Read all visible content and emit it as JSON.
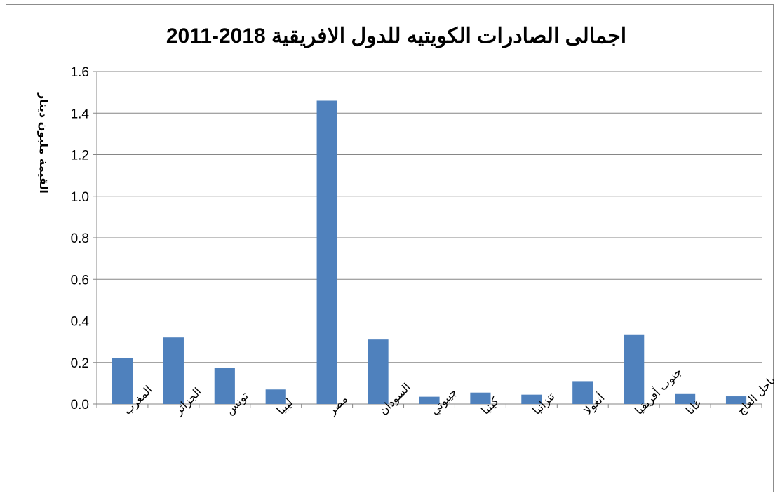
{
  "chart_data": {
    "type": "bar",
    "title": "اجمالى الصادرات الكويتيه للدول الافريقية 2018-2011",
    "xlabel": "",
    "ylabel": "القيمة مليون دينار",
    "categories": [
      "المغرب",
      "الجزائر",
      "تونس",
      "ليبيا",
      "مصر",
      "السودان",
      "جيبوتي",
      "كينيا",
      "تنزانيا",
      "أنغولا",
      "جنوب أفريقيا",
      "غانا",
      "ساحل العاج"
    ],
    "values": [
      0.22,
      0.32,
      0.175,
      0.07,
      1.46,
      0.31,
      0.035,
      0.055,
      0.045,
      0.11,
      0.335,
      0.048,
      0.037
    ],
    "yticks": [
      "0.0",
      "0.2",
      "0.4",
      "0.6",
      "0.8",
      "1.0",
      "1.2",
      "1.4",
      "1.6"
    ],
    "ylim": [
      0,
      1.6
    ],
    "grid": true,
    "legend": "none",
    "bar_color": "#4f81bd",
    "grid_color": "#868686"
  }
}
